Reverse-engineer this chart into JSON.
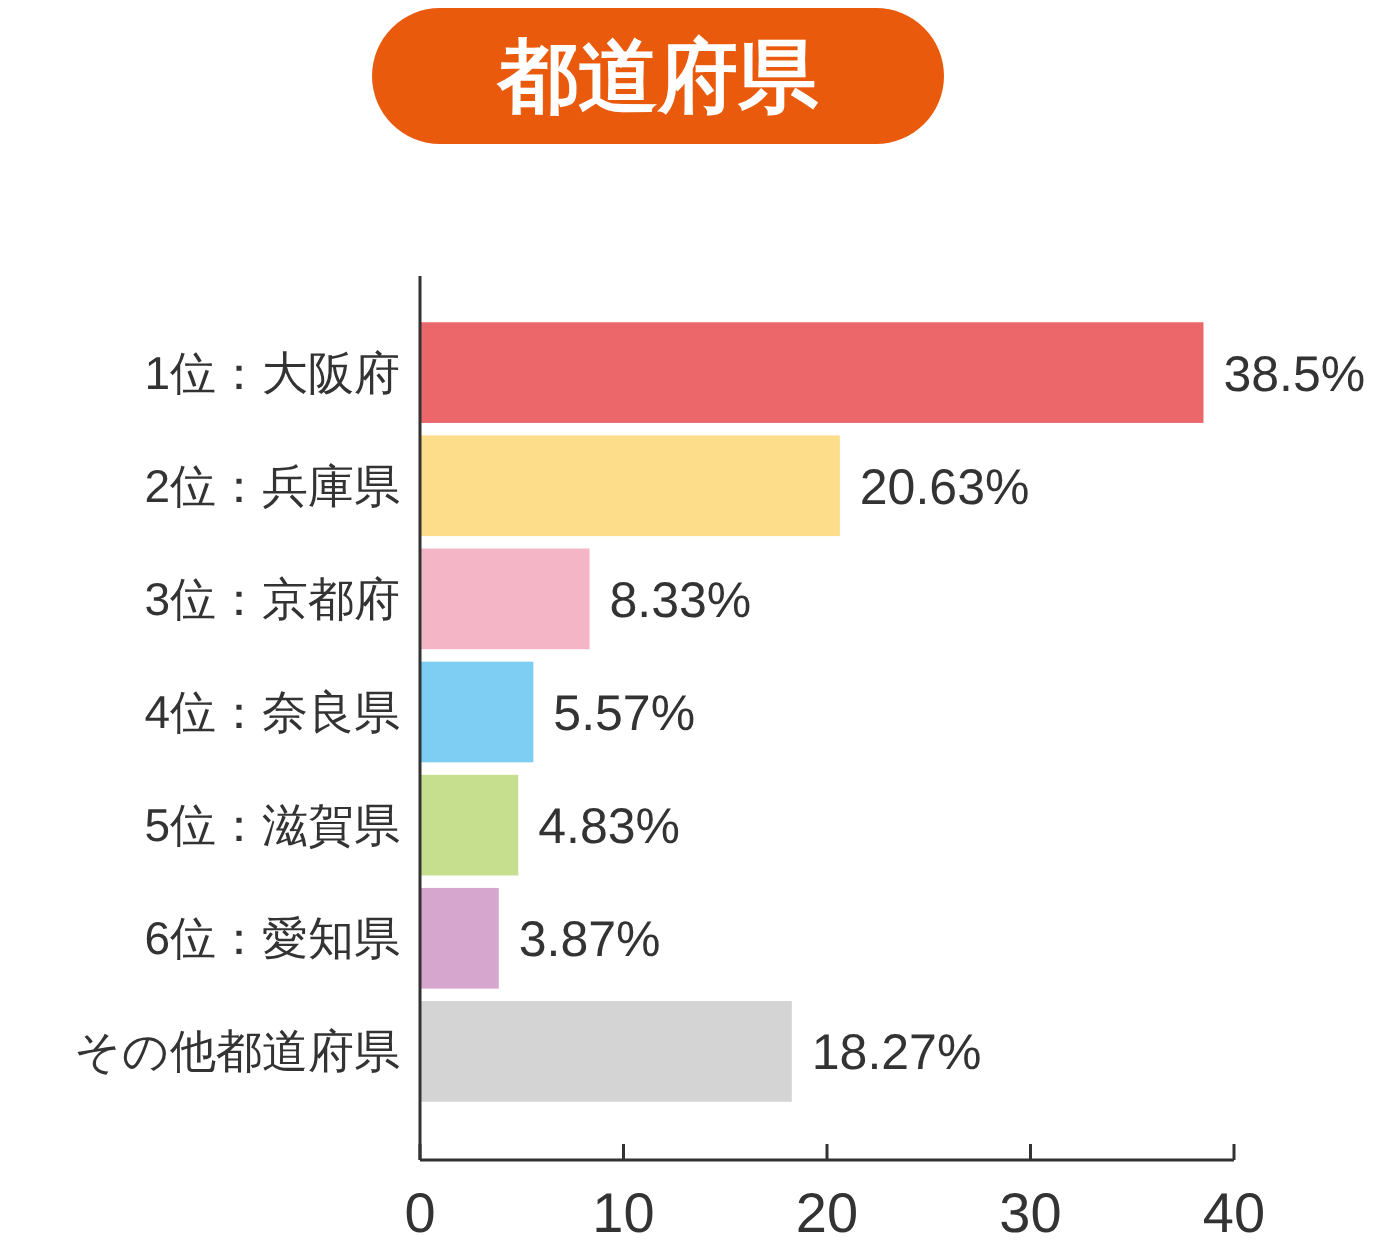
{
  "chart_data": {
    "type": "bar",
    "orientation": "horizontal",
    "title": "都道府県",
    "categories": [
      "1位：大阪府",
      "2位：兵庫県",
      "3位：京都府",
      "4位：奈良県",
      "5位：滋賀県",
      "6位：愛知県",
      "その他都道府県"
    ],
    "values": [
      38.5,
      20.63,
      8.33,
      5.57,
      4.83,
      3.87,
      18.27
    ],
    "colors": [
      "#ec6769",
      "#fddc8a",
      "#f4b6c7",
      "#7ecef4",
      "#c5df8e",
      "#d7a6cf",
      "#d4d4d4"
    ],
    "value_labels": [
      "38.5%",
      "20.63%",
      "8.33%",
      "5.57%",
      "4.83%",
      "3.87%",
      "18.27%"
    ],
    "xlim": [
      0,
      40
    ],
    "xticks": [
      0,
      10,
      20,
      30,
      40
    ],
    "grid": false
  }
}
